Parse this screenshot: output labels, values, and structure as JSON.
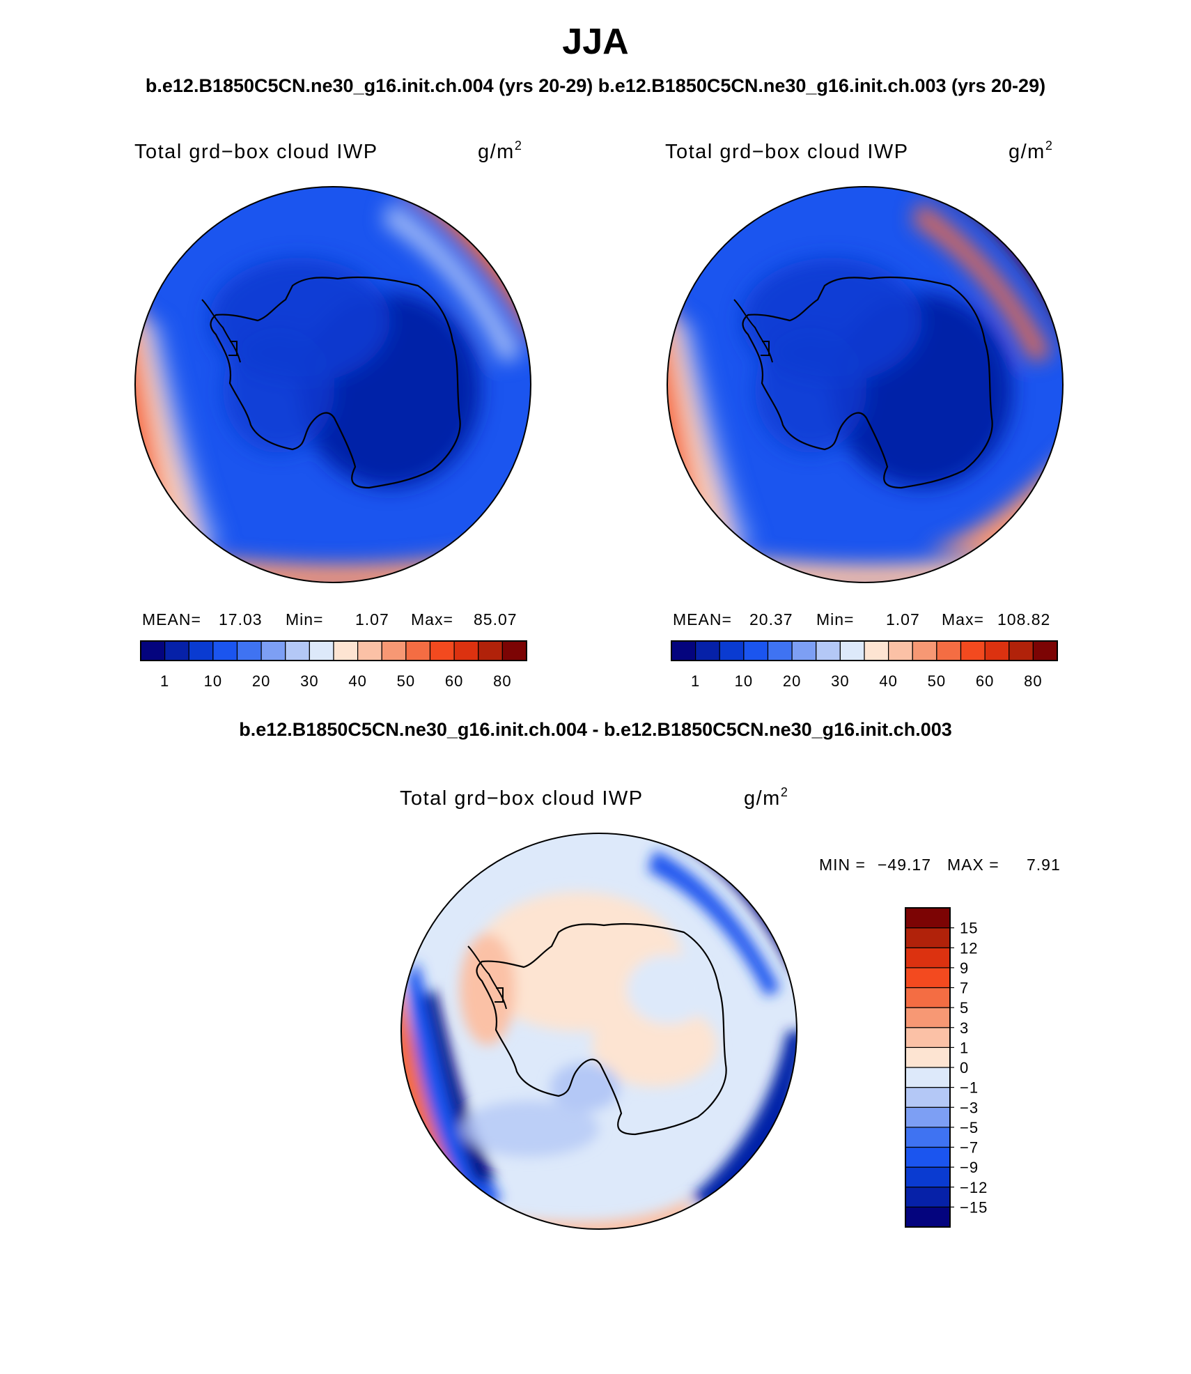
{
  "season_title": "JJA",
  "case_header": "b.e12.B1850C5CN.ne30_g16.init.ch.004 (yrs 20-29) b.e12.B1850C5CN.ne30_g16.init.ch.003 (yrs 20-29)",
  "difference_header": "b.e12.B1850C5CN.ne30_g16.init.ch.004 - b.e12.B1850C5CN.ne30_g16.init.ch.003",
  "panels": [
    {
      "variable": "Total grd−box cloud IWP",
      "units_base": "g/m",
      "units_exp": "2",
      "mean_label": "MEAN=",
      "mean_value": "17.03",
      "min_label": "Min=",
      "min_value": "1.07",
      "max_label": "Max=",
      "max_value": "85.07"
    },
    {
      "variable": "Total grd−box cloud IWP",
      "units_base": "g/m",
      "units_exp": "2",
      "mean_label": "MEAN=",
      "mean_value": "20.37",
      "min_label": "Min=",
      "min_value": "1.07",
      "max_label": "Max=",
      "max_value": "108.82"
    }
  ],
  "difference_panel": {
    "variable": "Total grd−box cloud IWP",
    "units_base": "g/m",
    "units_exp": "2",
    "min_label": "MIN =",
    "min_value": "−49.17",
    "max_label": "MAX =",
    "max_value": "7.91"
  },
  "colorbar_main": {
    "colors": [
      "#04047e",
      "#0621a8",
      "#0a3bd1",
      "#1b55ef",
      "#3f73f2",
      "#7d9ff4",
      "#b4c8f6",
      "#dde9fa",
      "#fde4d2",
      "#fbc1a6",
      "#f79874",
      "#f46d43",
      "#f34a1f",
      "#dc3210",
      "#b1220a",
      "#7c0404"
    ],
    "tick_labels": [
      "1",
      "10",
      "20",
      "30",
      "40",
      "50",
      "60",
      "80"
    ]
  },
  "colorbar_diff": {
    "colors": [
      "#04047e",
      "#0621a8",
      "#0a3bd1",
      "#1b55ef",
      "#3f73f2",
      "#7d9ff4",
      "#b4c8f6",
      "#dde9fa",
      "#fde4d2",
      "#fbc1a6",
      "#f79874",
      "#f46d43",
      "#f34a1f",
      "#dc3210",
      "#b1220a",
      "#7c0404"
    ],
    "tick_labels": [
      "15",
      "12",
      "9",
      "7",
      "5",
      "3",
      "1",
      "0",
      "−1",
      "−3",
      "−5",
      "−7",
      "−9",
      "−12",
      "−15"
    ]
  }
}
